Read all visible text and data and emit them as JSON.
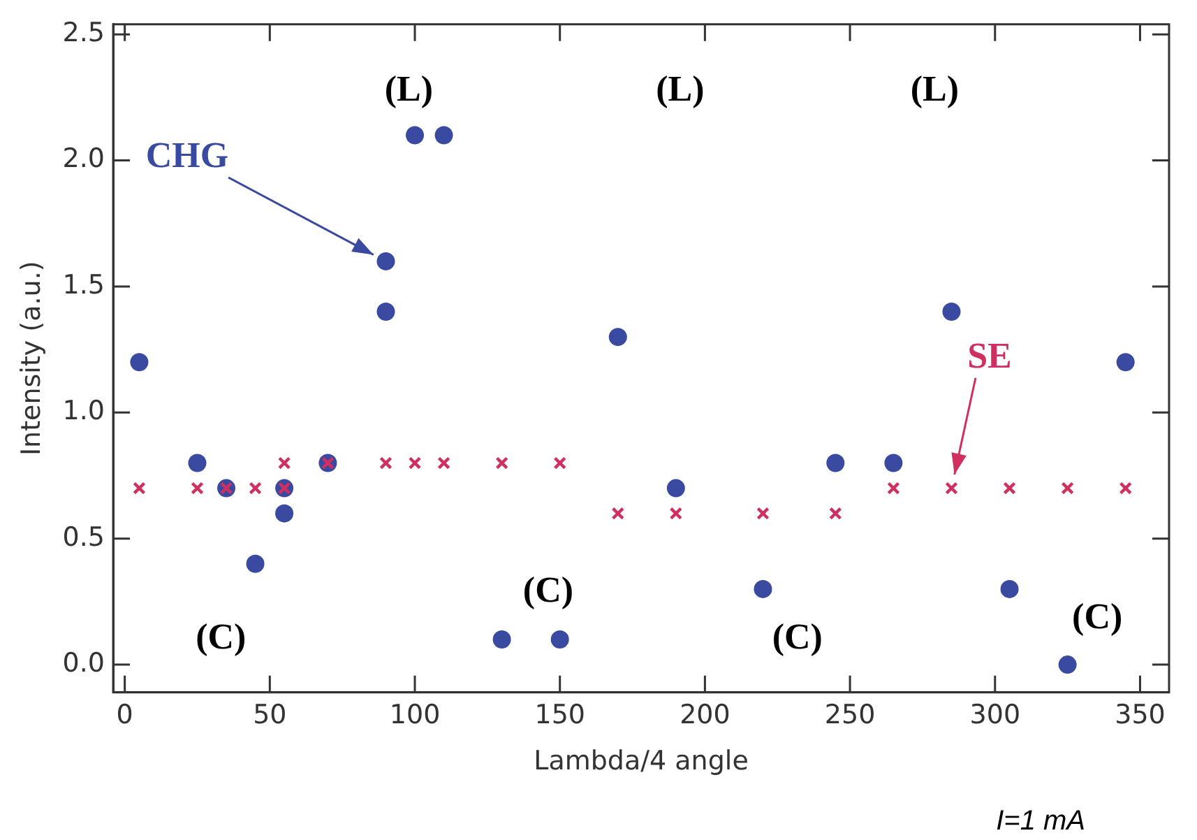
{
  "chart_data": {
    "type": "scatter",
    "xlabel": "Lambda/4 angle",
    "ylabel": "Intensity (a.u.)",
    "xlim": [
      -4,
      360
    ],
    "ylim": [
      -0.11,
      2.54
    ],
    "xticks": [
      0,
      50,
      100,
      150,
      200,
      250,
      300,
      350
    ],
    "yticks": [
      {
        "value": 0,
        "label": "0.0"
      },
      {
        "value": 0.5,
        "label": "0.5"
      },
      {
        "value": 1,
        "label": "1.0"
      },
      {
        "value": 1.5,
        "label": "1.5"
      },
      {
        "value": 2,
        "label": "2.0"
      },
      {
        "value": 2.5,
        "label": "2.5"
      }
    ],
    "grid": false,
    "legend": false,
    "series": [
      {
        "name": "CHG",
        "color": "#3a4aa0",
        "marker": "circle",
        "x": [
          5,
          25,
          35,
          45,
          55,
          55,
          70,
          90,
          90,
          100,
          110,
          130,
          150,
          170,
          190,
          220,
          245,
          265,
          285,
          305,
          325,
          345
        ],
        "values": [
          1.2,
          0.8,
          0.7,
          0.4,
          0.7,
          0.6,
          0.8,
          1.6,
          1.4,
          2.1,
          2.1,
          0.1,
          0.1,
          1.3,
          0.7,
          0.3,
          0.8,
          0.8,
          1.4,
          0.3,
          0.0,
          1.2
        ]
      },
      {
        "name": "SE",
        "color": "#d03060",
        "marker": "cross",
        "x": [
          5,
          25,
          35,
          45,
          55,
          55,
          70,
          90,
          100,
          110,
          130,
          150,
          170,
          190,
          220,
          245,
          265,
          285,
          305,
          325,
          345
        ],
        "values": [
          0.7,
          0.7,
          0.7,
          0.7,
          0.8,
          0.7,
          0.8,
          0.8,
          0.8,
          0.8,
          0.8,
          0.8,
          0.6,
          0.6,
          0.6,
          0.6,
          0.7,
          0.7,
          0.7,
          0.7,
          0.7
        ]
      }
    ],
    "annotations": [
      "(L)",
      "(L)",
      "(L)",
      "(C)",
      "(C)",
      "(C)",
      "(C)",
      "I=1 mA"
    ]
  }
}
